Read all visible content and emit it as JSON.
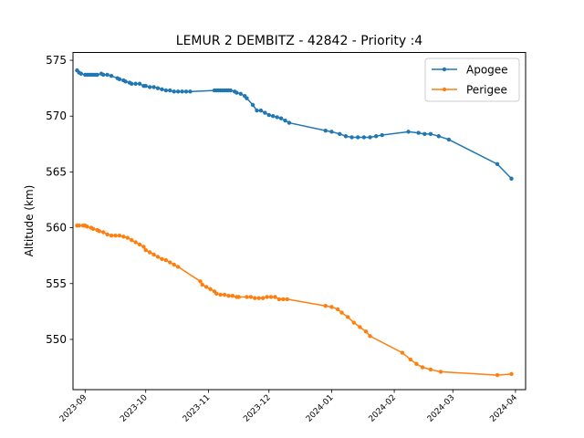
{
  "chart_data": {
    "type": "line",
    "title": "LEMUR 2 DEMBITZ - 42842 - Priority :4",
    "xlabel": "",
    "ylabel": "Altitude (km)",
    "x_axis": "date",
    "xlim": [
      "2023-08-26",
      "2024-04-06"
    ],
    "ylim": [
      545.5,
      575.7
    ],
    "x_ticks": [
      "2023-09",
      "2023-10",
      "2023-11",
      "2023-12",
      "2024-01",
      "2024-02",
      "2024-03",
      "2024-04"
    ],
    "y_ticks": [
      550,
      555,
      560,
      565,
      570,
      575
    ],
    "legend_position": "top-right",
    "grid": false,
    "series": [
      {
        "name": "Apogee",
        "color": "#1f77b4",
        "points": [
          [
            "2023-08-28",
            574.1
          ],
          [
            "2023-08-29",
            573.9
          ],
          [
            "2023-08-30",
            573.8
          ],
          [
            "2023-09-01",
            573.7
          ],
          [
            "2023-09-02",
            573.7
          ],
          [
            "2023-09-03",
            573.7
          ],
          [
            "2023-09-04",
            573.7
          ],
          [
            "2023-09-05",
            573.7
          ],
          [
            "2023-09-06",
            573.7
          ],
          [
            "2023-09-07",
            573.7
          ],
          [
            "2023-09-09",
            573.8
          ],
          [
            "2023-09-10",
            573.7
          ],
          [
            "2023-09-12",
            573.7
          ],
          [
            "2023-09-14",
            573.6
          ],
          [
            "2023-09-17",
            573.4
          ],
          [
            "2023-09-18",
            573.3
          ],
          [
            "2023-09-20",
            573.2
          ],
          [
            "2023-09-21",
            573.1
          ],
          [
            "2023-09-23",
            573.0
          ],
          [
            "2023-09-24",
            572.9
          ],
          [
            "2023-09-26",
            572.9
          ],
          [
            "2023-09-28",
            572.9
          ],
          [
            "2023-09-30",
            572.7
          ],
          [
            "2023-10-01",
            572.7
          ],
          [
            "2023-10-03",
            572.6
          ],
          [
            "2023-10-05",
            572.6
          ],
          [
            "2023-10-07",
            572.5
          ],
          [
            "2023-10-09",
            572.4
          ],
          [
            "2023-10-11",
            572.3
          ],
          [
            "2023-10-13",
            572.3
          ],
          [
            "2023-10-15",
            572.2
          ],
          [
            "2023-10-17",
            572.2
          ],
          [
            "2023-10-19",
            572.2
          ],
          [
            "2023-10-21",
            572.2
          ],
          [
            "2023-10-23",
            572.2
          ],
          [
            "2023-11-04",
            572.3
          ],
          [
            "2023-11-05",
            572.3
          ],
          [
            "2023-11-06",
            572.3
          ],
          [
            "2023-11-07",
            572.3
          ],
          [
            "2023-11-08",
            572.3
          ],
          [
            "2023-11-09",
            572.3
          ],
          [
            "2023-11-10",
            572.3
          ],
          [
            "2023-11-11",
            572.3
          ],
          [
            "2023-11-12",
            572.3
          ],
          [
            "2023-11-14",
            572.2
          ],
          [
            "2023-11-15",
            572.1
          ],
          [
            "2023-11-17",
            572.0
          ],
          [
            "2023-11-19",
            571.8
          ],
          [
            "2023-11-20",
            571.6
          ],
          [
            "2023-11-23",
            571.0
          ],
          [
            "2023-11-25",
            570.5
          ],
          [
            "2023-11-27",
            570.5
          ],
          [
            "2023-11-29",
            570.3
          ],
          [
            "2023-12-01",
            570.1
          ],
          [
            "2023-12-03",
            570.0
          ],
          [
            "2023-12-05",
            569.9
          ],
          [
            "2023-12-07",
            569.8
          ],
          [
            "2023-12-09",
            569.6
          ],
          [
            "2023-12-11",
            569.4
          ],
          [
            "2023-12-29",
            568.7
          ],
          [
            "2024-01-01",
            568.6
          ],
          [
            "2024-01-05",
            568.4
          ],
          [
            "2024-01-08",
            568.2
          ],
          [
            "2024-01-11",
            568.1
          ],
          [
            "2024-01-14",
            568.1
          ],
          [
            "2024-01-17",
            568.1
          ],
          [
            "2024-01-20",
            568.1
          ],
          [
            "2024-01-23",
            568.2
          ],
          [
            "2024-01-26",
            568.3
          ],
          [
            "2024-02-08",
            568.6
          ],
          [
            "2024-02-13",
            568.5
          ],
          [
            "2024-02-16",
            568.4
          ],
          [
            "2024-02-19",
            568.4
          ],
          [
            "2024-02-23",
            568.2
          ],
          [
            "2024-02-28",
            567.9
          ],
          [
            "2024-03-23",
            565.7
          ],
          [
            "2024-03-30",
            564.4
          ]
        ]
      },
      {
        "name": "Perigee",
        "color": "#ff7f0e",
        "points": [
          [
            "2023-08-28",
            560.2
          ],
          [
            "2023-08-29",
            560.2
          ],
          [
            "2023-08-31",
            560.2
          ],
          [
            "2023-09-01",
            560.2
          ],
          [
            "2023-09-02",
            560.1
          ],
          [
            "2023-09-04",
            560.0
          ],
          [
            "2023-09-05",
            559.9
          ],
          [
            "2023-09-07",
            559.8
          ],
          [
            "2023-09-08",
            559.7
          ],
          [
            "2023-09-10",
            559.6
          ],
          [
            "2023-09-12",
            559.4
          ],
          [
            "2023-09-14",
            559.3
          ],
          [
            "2023-09-16",
            559.3
          ],
          [
            "2023-09-18",
            559.3
          ],
          [
            "2023-09-20",
            559.2
          ],
          [
            "2023-09-22",
            559.1
          ],
          [
            "2023-09-24",
            558.9
          ],
          [
            "2023-09-26",
            558.7
          ],
          [
            "2023-09-28",
            558.5
          ],
          [
            "2023-09-30",
            558.3
          ],
          [
            "2023-10-01",
            558.0
          ],
          [
            "2023-10-03",
            557.8
          ],
          [
            "2023-10-05",
            557.6
          ],
          [
            "2023-10-07",
            557.4
          ],
          [
            "2023-10-09",
            557.2
          ],
          [
            "2023-10-11",
            557.1
          ],
          [
            "2023-10-13",
            556.9
          ],
          [
            "2023-10-15",
            556.7
          ],
          [
            "2023-10-17",
            556.5
          ],
          [
            "2023-10-28",
            555.2
          ],
          [
            "2023-10-29",
            554.9
          ],
          [
            "2023-10-31",
            554.7
          ],
          [
            "2023-11-02",
            554.5
          ],
          [
            "2023-11-04",
            554.3
          ],
          [
            "2023-11-05",
            554.1
          ],
          [
            "2023-11-07",
            554.0
          ],
          [
            "2023-11-09",
            554.0
          ],
          [
            "2023-11-11",
            553.9
          ],
          [
            "2023-11-13",
            553.9
          ],
          [
            "2023-11-15",
            553.8
          ],
          [
            "2023-11-16",
            553.8
          ],
          [
            "2023-11-20",
            553.8
          ],
          [
            "2023-11-22",
            553.8
          ],
          [
            "2023-11-24",
            553.7
          ],
          [
            "2023-11-26",
            553.7
          ],
          [
            "2023-11-28",
            553.7
          ],
          [
            "2023-11-30",
            553.8
          ],
          [
            "2023-12-02",
            553.8
          ],
          [
            "2023-12-04",
            553.8
          ],
          [
            "2023-12-06",
            553.6
          ],
          [
            "2023-12-08",
            553.6
          ],
          [
            "2023-12-10",
            553.6
          ],
          [
            "2023-12-29",
            553.0
          ],
          [
            "2024-01-01",
            552.9
          ],
          [
            "2024-01-04",
            552.7
          ],
          [
            "2024-01-06",
            552.4
          ],
          [
            "2024-01-09",
            552.0
          ],
          [
            "2024-01-12",
            551.5
          ],
          [
            "2024-01-15",
            551.1
          ],
          [
            "2024-01-18",
            550.7
          ],
          [
            "2024-01-20",
            550.3
          ],
          [
            "2024-02-05",
            548.8
          ],
          [
            "2024-02-09",
            548.2
          ],
          [
            "2024-02-12",
            547.8
          ],
          [
            "2024-02-15",
            547.5
          ],
          [
            "2024-02-19",
            547.3
          ],
          [
            "2024-02-24",
            547.1
          ],
          [
            "2024-03-23",
            546.8
          ],
          [
            "2024-03-30",
            546.9
          ]
        ]
      }
    ]
  }
}
